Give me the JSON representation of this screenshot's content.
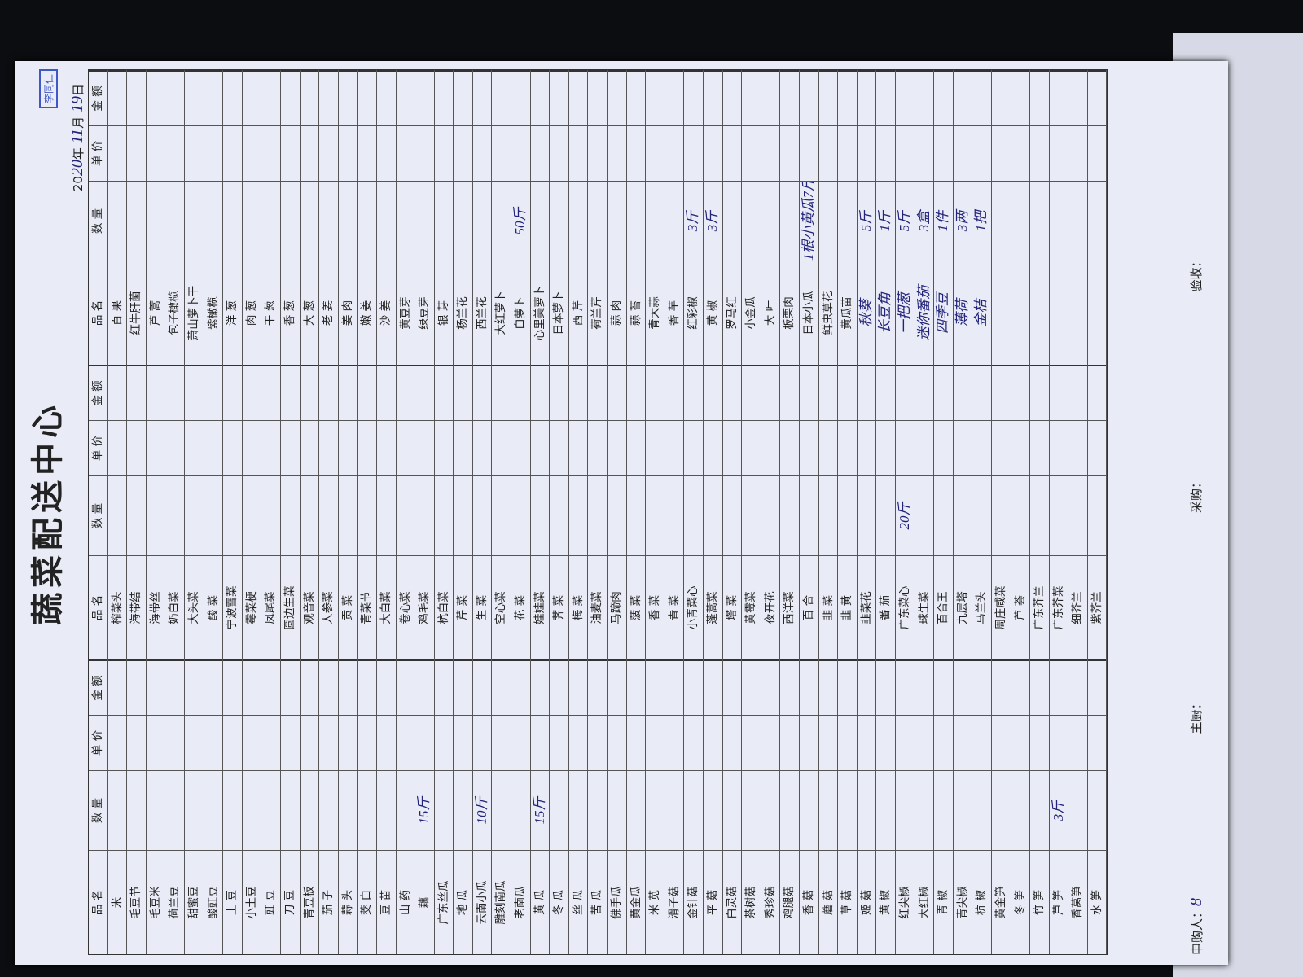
{
  "title": "蔬菜配送中心",
  "date": {
    "year_prefix": "20",
    "year_written": "20",
    "year_unit": "年",
    "month_written": "11",
    "month_unit": "月",
    "day_written": "19",
    "day_unit": "日"
  },
  "columns": [
    "品 名",
    "数 量",
    "单 价",
    "金 额"
  ],
  "groups": [
    {
      "rows": [
        {
          "name": "米"
        },
        {
          "name": "毛豆节"
        },
        {
          "name": "毛豆米"
        },
        {
          "name": "荷兰豆"
        },
        {
          "name": "甜蜜豆"
        },
        {
          "name": "酸豇豆"
        },
        {
          "name": "土 豆"
        },
        {
          "name": "小土豆"
        },
        {
          "name": "豇 豆"
        },
        {
          "name": "刀 豆"
        },
        {
          "name": "青豆板"
        },
        {
          "name": "茄 子"
        },
        {
          "name": "蒜 头"
        },
        {
          "name": "茭 白"
        },
        {
          "name": "豆 苗"
        },
        {
          "name": "山 药"
        },
        {
          "name": "藕",
          "quantity": "15斤"
        },
        {
          "name": "广东丝瓜"
        },
        {
          "name": "地 瓜"
        },
        {
          "name": "云南小瓜",
          "quantity": "10斤"
        },
        {
          "name": "雕刻南瓜"
        },
        {
          "name": "老南瓜"
        },
        {
          "name": "黄 瓜",
          "quantity": "15斤"
        },
        {
          "name": "冬 瓜"
        },
        {
          "name": "丝 瓜"
        },
        {
          "name": "苦 瓜"
        },
        {
          "name": "佛手瓜"
        },
        {
          "name": "黄金瓜"
        },
        {
          "name": "米 苋"
        },
        {
          "name": "滑子菇"
        },
        {
          "name": "金针菇"
        },
        {
          "name": "平 菇"
        },
        {
          "name": "白灵菇"
        },
        {
          "name": "茶树菇"
        },
        {
          "name": "秀珍菇"
        },
        {
          "name": "鸡腿菇"
        },
        {
          "name": "香 菇"
        },
        {
          "name": "蘑 菇"
        },
        {
          "name": "草 菇"
        },
        {
          "name": "姬 菇"
        },
        {
          "name": "黄 椒"
        },
        {
          "name": "红尖椒"
        },
        {
          "name": "大红椒"
        },
        {
          "name": "青 椒"
        },
        {
          "name": "青尖椒"
        },
        {
          "name": "杭 椒"
        },
        {
          "name": "黄金笋"
        },
        {
          "name": "冬 笋"
        },
        {
          "name": "竹 笋"
        },
        {
          "name": "芦 笋",
          "quantity": "3斤"
        },
        {
          "name": "香莴笋"
        },
        {
          "name": "水 笋"
        }
      ]
    },
    {
      "rows": [
        {
          "name": "榨菜头"
        },
        {
          "name": "海带结"
        },
        {
          "name": "海带丝"
        },
        {
          "name": "奶白菜"
        },
        {
          "name": "大头菜"
        },
        {
          "name": "酸 菜"
        },
        {
          "name": "宁波雪菜"
        },
        {
          "name": "霉菜梗"
        },
        {
          "name": "凤尾菜"
        },
        {
          "name": "圆边生菜"
        },
        {
          "name": "观音菜"
        },
        {
          "name": "人参菜"
        },
        {
          "name": "贡 菜"
        },
        {
          "name": "青菜节"
        },
        {
          "name": "大白菜"
        },
        {
          "name": "卷心菜"
        },
        {
          "name": "鸡毛菜"
        },
        {
          "name": "杭白菜"
        },
        {
          "name": "芹 菜"
        },
        {
          "name": "生 菜"
        },
        {
          "name": "空心菜"
        },
        {
          "name": "花 菜"
        },
        {
          "name": "娃娃菜"
        },
        {
          "name": "荠 菜"
        },
        {
          "name": "梅 菜"
        },
        {
          "name": "油麦菜"
        },
        {
          "name": "马蹄肉"
        },
        {
          "name": "菠 菜"
        },
        {
          "name": "香 菜"
        },
        {
          "name": "青 菜"
        },
        {
          "name": "小青菜心"
        },
        {
          "name": "蓬蒿菜"
        },
        {
          "name": "塔 菜"
        },
        {
          "name": "黄霉菜"
        },
        {
          "name": "夜开花"
        },
        {
          "name": "西洋菜"
        },
        {
          "name": "百 合"
        },
        {
          "name": "韭 菜"
        },
        {
          "name": "韭 黄"
        },
        {
          "name": "韭菜花"
        },
        {
          "name": "番 茄"
        },
        {
          "name": "广东菜心",
          "quantity": "20斤"
        },
        {
          "name": "球生菜"
        },
        {
          "name": "百合王"
        },
        {
          "name": "九层塔"
        },
        {
          "name": "马兰头"
        },
        {
          "name": "周庄咸菜"
        },
        {
          "name": "芦 荟"
        },
        {
          "name": "广东芥兰"
        },
        {
          "name": "广东芥菜"
        },
        {
          "name": "细芥兰"
        },
        {
          "name": "紫芥兰"
        }
      ]
    },
    {
      "rows": [
        {
          "name": "百 果"
        },
        {
          "name": "红牛肝菌"
        },
        {
          "name": "芦 蒿"
        },
        {
          "name": "包子橄榄"
        },
        {
          "name": "萧山萝卜干"
        },
        {
          "name": "紫橄榄"
        },
        {
          "name": "洋 葱"
        },
        {
          "name": "肉 葱"
        },
        {
          "name": "干 葱"
        },
        {
          "name": "香 葱"
        },
        {
          "name": "大 葱"
        },
        {
          "name": "老 姜"
        },
        {
          "name": "姜 肉"
        },
        {
          "name": "嫩 姜"
        },
        {
          "name": "沙 姜"
        },
        {
          "name": "黄豆芽"
        },
        {
          "name": "绿豆芽"
        },
        {
          "name": "银 芽"
        },
        {
          "name": "杨兰花"
        },
        {
          "name": "西兰花"
        },
        {
          "name": "大红萝卜"
        },
        {
          "name": "白萝卜",
          "quantity": "50斤"
        },
        {
          "name": "心里美萝卜"
        },
        {
          "name": "日本萝卜"
        },
        {
          "name": "西 芹"
        },
        {
          "name": "荷兰芹"
        },
        {
          "name": "蒜 肉"
        },
        {
          "name": "蒜 苔"
        },
        {
          "name": "青大蒜"
        },
        {
          "name": "香 芋"
        },
        {
          "name": "红彩椒",
          "quantity": "3斤"
        },
        {
          "name": "黄 椒",
          "quantity": "3斤"
        },
        {
          "name": "罗马红"
        },
        {
          "name": "小金瓜"
        },
        {
          "name": "大 叶"
        },
        {
          "name": "板栗肉"
        },
        {
          "name": "日本小瓜",
          "quantity": "1根小黄瓜7斤"
        },
        {
          "name": "鲜虫草花"
        },
        {
          "name": "黄瓜苗"
        },
        {
          "name": "秋葵",
          "quantity": "5斤",
          "handwritten": true
        },
        {
          "name": "长豆角",
          "quantity": "1斤",
          "handwritten": true
        },
        {
          "name": "一把葱",
          "quantity": "5斤",
          "handwritten": true
        },
        {
          "name": "迷你番茄",
          "quantity": "3盒",
          "handwritten": true
        },
        {
          "name": "四季豆",
          "quantity": "1件",
          "handwritten": true
        },
        {
          "name": "薄荷",
          "quantity": "3两",
          "handwritten": true
        },
        {
          "name": "金桔",
          "quantity": "1把",
          "handwritten": true
        }
      ]
    }
  ],
  "footer": {
    "requester": "申购人：",
    "requester_written": "8",
    "chef": "主厨：",
    "buyer": "采购：",
    "inspector": "验收："
  },
  "stamp": "李同仁"
}
